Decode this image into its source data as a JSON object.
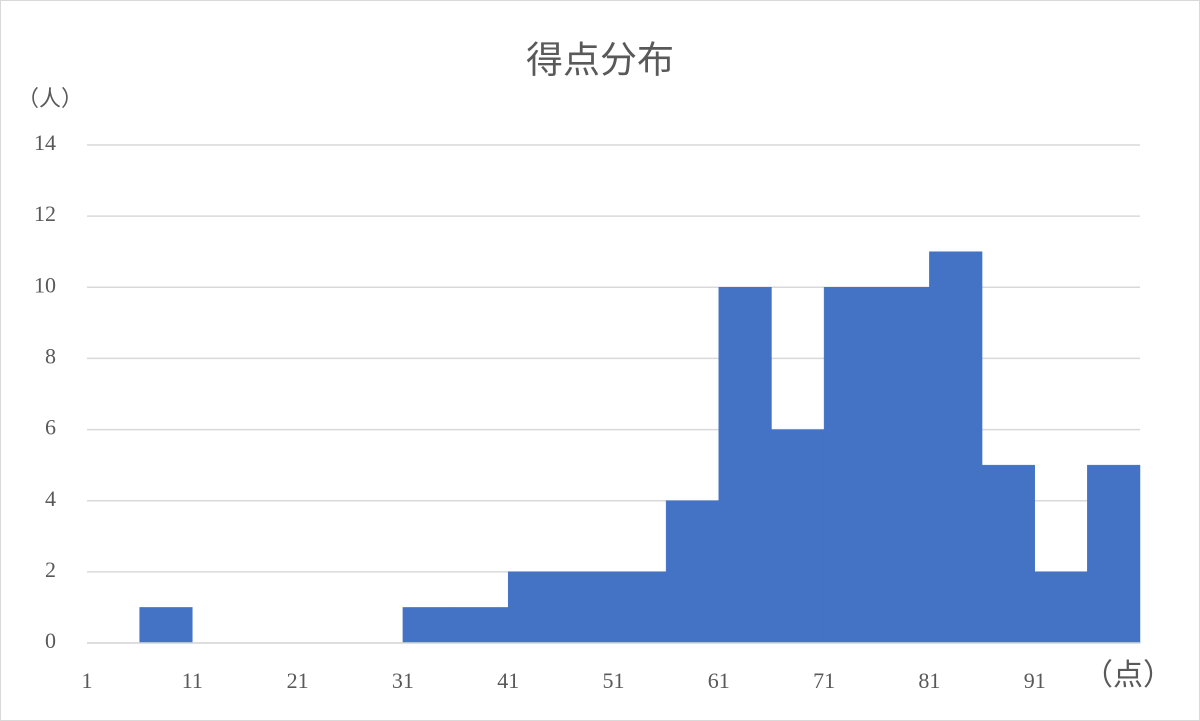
{
  "chart_data": {
    "type": "histogram",
    "title": "得点分布",
    "y_label": "（人）",
    "x_label": "（点）",
    "bins": [
      1,
      6,
      11,
      16,
      21,
      26,
      31,
      36,
      41,
      46,
      51,
      56,
      61,
      66,
      71,
      76,
      81,
      86,
      91,
      96,
      101
    ],
    "values": [
      0,
      1,
      0,
      0,
      0,
      0,
      1,
      1,
      2,
      2,
      2,
      4,
      10,
      6,
      10,
      10,
      11,
      5,
      2,
      5
    ],
    "color": "#4472c4",
    "xlim": [
      1,
      101
    ],
    "xticks": [
      1,
      11,
      21,
      31,
      41,
      51,
      61,
      71,
      81,
      91
    ],
    "ylim": [
      0,
      14
    ],
    "yticks": [
      0,
      2,
      4,
      6,
      8,
      10,
      12,
      14
    ],
    "grid": true
  }
}
